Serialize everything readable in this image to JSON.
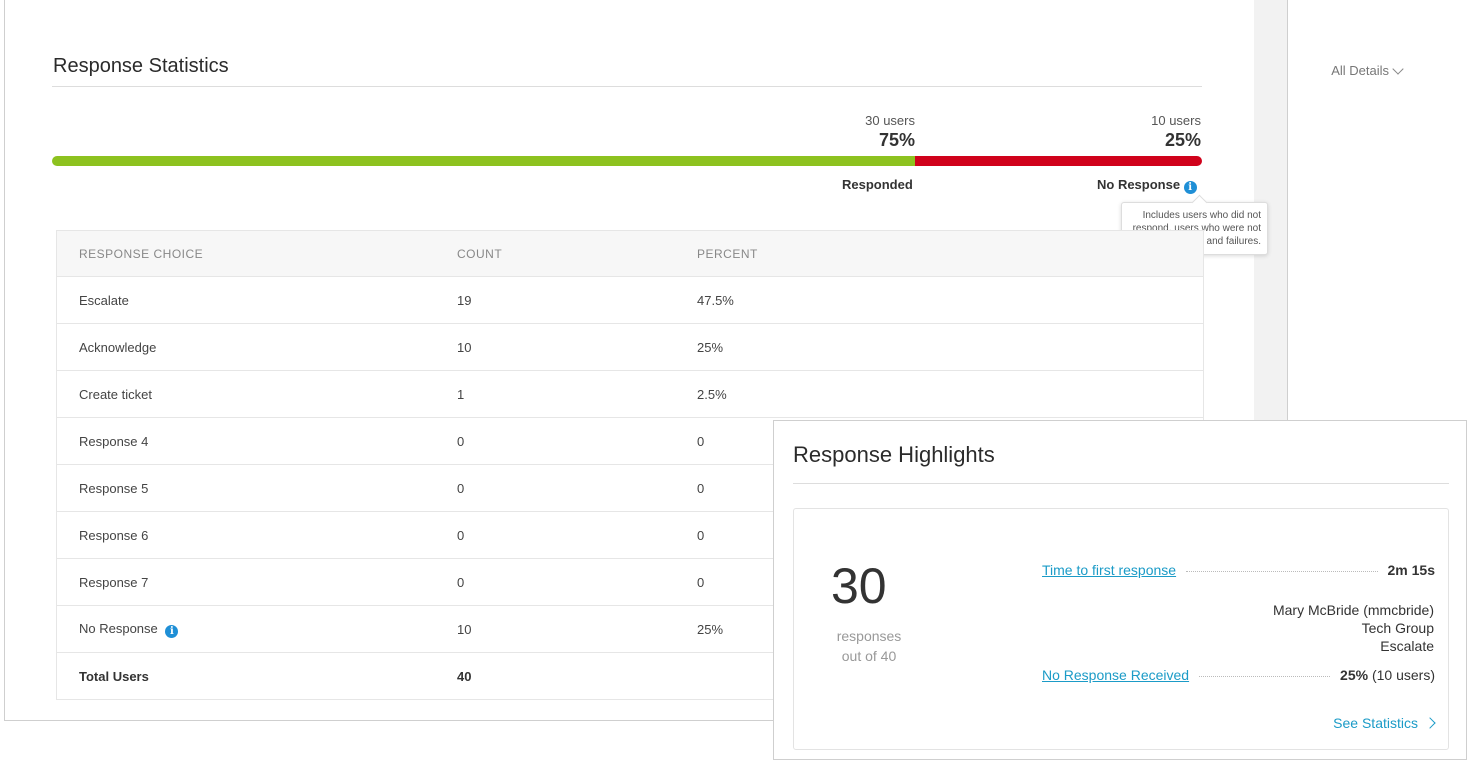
{
  "stats": {
    "title": "Response Statistics",
    "details_menu": "All Details",
    "responded": {
      "users": "30 users",
      "percent": "75%",
      "label": "Responded",
      "fraction": 0.75
    },
    "no_response": {
      "users": "10 users",
      "percent": "25%",
      "label": "No Response",
      "fraction": 0.25
    },
    "colors": {
      "responded": "#8dc21f",
      "no_response": "#d0021b",
      "info": "#1f8fd6"
    },
    "tooltip": "Includes users who did not respond, users who were not notified, and failures.",
    "table": {
      "headers": [
        "RESPONSE CHOICE",
        "COUNT",
        "PERCENT"
      ],
      "rows": [
        {
          "choice": "Escalate",
          "count": "19",
          "percent": "47.5%"
        },
        {
          "choice": "Acknowledge",
          "count": "10",
          "percent": "25%"
        },
        {
          "choice": "Create ticket",
          "count": "1",
          "percent": "2.5%"
        },
        {
          "choice": "Response 4",
          "count": "0",
          "percent": "0"
        },
        {
          "choice": "Response 5",
          "count": "0",
          "percent": "0"
        },
        {
          "choice": "Response 6",
          "count": "0",
          "percent": "0"
        },
        {
          "choice": "Response 7",
          "count": "0",
          "percent": "0"
        },
        {
          "choice": "No Response",
          "count": "10",
          "percent": "25%"
        }
      ],
      "total": {
        "label": "Total Users",
        "count": "40"
      }
    }
  },
  "highlights": {
    "title": "Response Highlights",
    "big_number": "30",
    "sub_line1": "responses",
    "sub_line2": "out of 40",
    "first_response": {
      "label": "Time to first response",
      "value": "2m 15s"
    },
    "first_responder": {
      "name": "Mary McBride (mmcbride)",
      "group": "Tech Group",
      "choice": "Escalate"
    },
    "no_response": {
      "label": "No Response Received",
      "value_bold": "25%",
      "value_rest": " (10 users)"
    },
    "see_stats": "See Statistics"
  }
}
